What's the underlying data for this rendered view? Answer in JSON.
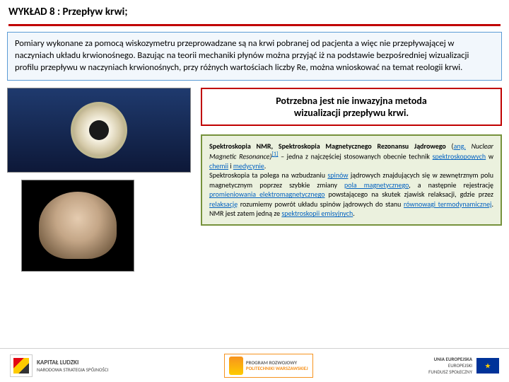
{
  "header": {
    "title": "WYKŁAD 8 : Przepływ krwi;",
    "underline_color": "#c00000"
  },
  "paragraph": {
    "text": "Pomiary wykonane za pomocą wiskozymetru przeprowadzane są na krwi pobranej od pacjenta a więc nie przepływającej w naczyniach układu krwionośnego. Bazując na teorii mechaniki płynów można przyjąć iż na podstawie bezpośredniej wizualizacji profilu przepływu w naczyniach krwionośnych, przy różnych wartościach liczby Re, można wnioskować na temat reologii krwi.",
    "border_color": "#5b9bd5",
    "bg_color": "#f2f7fc"
  },
  "callout": {
    "line1": "Potrzebna jest nie inwazyjna metoda",
    "line2": "wizualizacji przepływu krwi.",
    "border_color": "#c00000"
  },
  "nmr": {
    "title": "Spektroskopia NMR, Spektroskopia Magnetycznego Rezonansu Jądrowego",
    "paren_open": " (",
    "ang": "ang.",
    "nmr_en": " Nuclear Magnetic Resonance)",
    "ref1": "[1]",
    "p1_rest": " – jedna z najczęściej stosowanych obecnie technik ",
    "link_spektro": "spektroskopowych",
    "p1_in": " w ",
    "link_chemii": "chemii",
    "p1_and": " i ",
    "link_med": "medycynie",
    "p1_dot": ".",
    "p2_a": "Spektroskopia ta polega na wzbudzaniu ",
    "link_spinow": "spinów",
    "p2_b": " jądrowych znajdujących się w zewnętrznym polu magnetycznym poprzez szybkie zmiany ",
    "link_pola": "pola magnetycznego",
    "p2_c": ", a następnie rejestrację ",
    "link_prom": "promieniowania elektromagnetycznego",
    "p2_d": " powstającego na skutek zjawisk relaksacji, gdzie przez ",
    "link_relak": "relaksację",
    "p2_e": " rozumiemy powrót układu spinów jądrowych do stanu ",
    "link_rown": "równowagi termodynamicznej",
    "p2_f": ". NMR jest zatem jedną ze ",
    "link_emis": "spektroskopii emisyjnych",
    "p2_g": ".",
    "border_color": "#76923c",
    "bg_color": "#ebf1de"
  },
  "footer": {
    "kapital": "KAPITAŁ LUDZKI",
    "kapital_sub": "NARODOWA STRATEGIA SPÓJNOŚCI",
    "pw_l1": "PROGRAM ROZWOJOWY",
    "pw_l2": "POLITECHNIKI WARSZAWSKIEJ",
    "eu_l1": "UNIA EUROPEJSKA",
    "eu_l2": "EUROPEJSKI",
    "eu_l3": "FUNDUSZ SPOŁECZNY"
  }
}
